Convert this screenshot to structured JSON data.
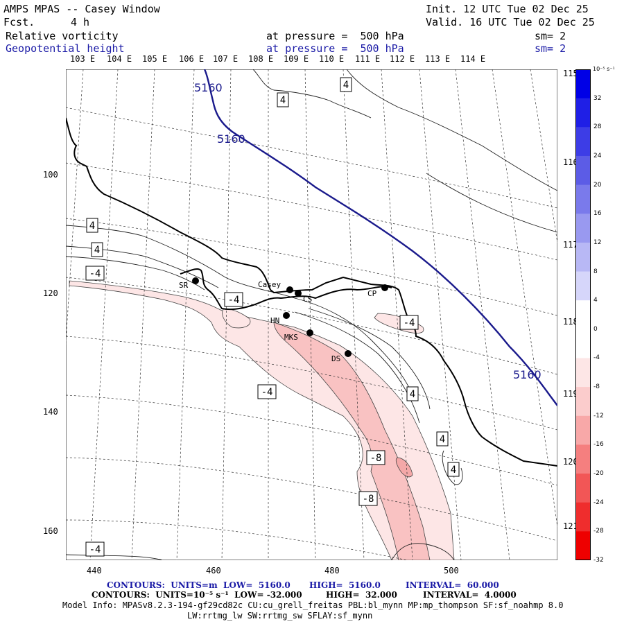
{
  "header": {
    "title": "AMPS MPAS -- Casey Window",
    "fcst_label": "Fcst.",
    "fcst_value": "4 h",
    "init": "Init. 12 UTC Tue 02 Dec 25",
    "valid": "Valid. 16 UTC Tue 02 Dec 25",
    "field1": "Relative vorticity",
    "field1_pressure": "at pressure =  500 hPa",
    "field1_sm": "sm= 2",
    "field2": "Geopotential height",
    "field2_pressure": "at pressure =  500 hPa",
    "field2_sm": "sm= 2"
  },
  "map": {
    "top_longitudes": [
      "103 E",
      "104 E",
      "105 E",
      "106 E",
      "107 E",
      "108 E",
      "109 E",
      "110 E",
      "111 E",
      "112 E",
      "113 E",
      "114 E"
    ],
    "right_longitudes": [
      "115 E",
      "116 E",
      "117 E",
      "118 E",
      "119 E",
      "120 E",
      "121 E"
    ],
    "x_ticks": [
      "440",
      "460",
      "480",
      "500"
    ],
    "y_ticks": [
      "100",
      "120",
      "140",
      "160"
    ],
    "stations": [
      {
        "name": "SR"
      },
      {
        "name": "Casey"
      },
      {
        "name": "CS"
      },
      {
        "name": "CP"
      },
      {
        "name": "HN"
      },
      {
        "name": "MKS"
      },
      {
        "name": "DS"
      }
    ],
    "height_labels": [
      "5160",
      "5160",
      "5160"
    ],
    "vort_labels": [
      "4",
      "4",
      "4",
      "4",
      "-4",
      "-4",
      "-4",
      "-4",
      "4",
      "4",
      "4",
      "-8",
      "-8",
      "-4"
    ],
    "colors": {
      "height_contour": "#1a1a8c",
      "neg_fill_light": "#fde6e6",
      "neg_fill_mid": "#f9c2c2",
      "neg_fill_dark": "#f4a8a8"
    }
  },
  "colorbar": {
    "unit": "10⁻⁵ s⁻¹",
    "labels": [
      "32",
      "28",
      "24",
      "20",
      "16",
      "12",
      "8",
      "4",
      "0",
      "-4",
      "-8",
      "-12",
      "-16",
      "-20",
      "-24",
      "-28",
      "-32"
    ],
    "colors": [
      "#0000e6",
      "#1f1fe6",
      "#3d3de6",
      "#5c5ce6",
      "#7a7aeb",
      "#9999f0",
      "#b8b8f5",
      "#d6d6fa",
      "#ffffff",
      "#ffffff",
      "#fde6e6",
      "#fbcccc",
      "#f8a8a8",
      "#f57f7f",
      "#f25656",
      "#ef2d2d",
      "#ee0000"
    ]
  },
  "footer": {
    "line1_a": "CONTOURS:  UNITS=m  LOW=  5160.0",
    "line1_b": "HIGH=  5160.0",
    "line1_c": "INTERVAL=  60.000",
    "line2_a": "CONTOURS:  UNITS=10⁻⁵ s⁻¹  LOW= -32.000",
    "line2_b": "HIGH=  32.000",
    "line2_c": "INTERVAL=  4.0000",
    "line3": "Model Info: MPASv8.2.3-194-gf29cd82c CU:cu_grell_freitas PBL:bl_mynn MP:mp_thompson SF:sf_noahmp 8.0",
    "line4": "LW:rrtmg_lw SW:rrtmg_sw SFLAY:sf_mynn"
  }
}
